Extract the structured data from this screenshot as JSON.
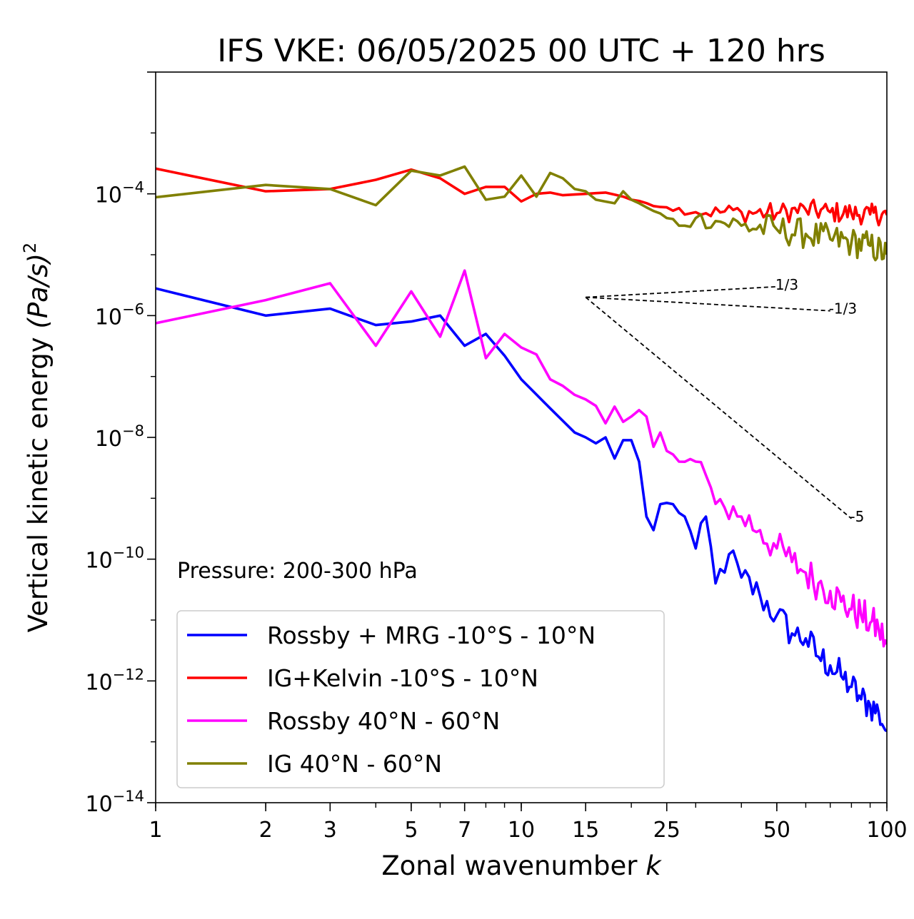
{
  "chart_data": {
    "type": "line",
    "title": "IFS VKE: 06/05/2025 00 UTC + 120 hrs",
    "xlabel_text": "Zonal wavenumber ",
    "xlabel_var": "k",
    "ylabel_text": "Vertical kinetic energy ",
    "ylabel_var": "(Pa/s)",
    "ylabel_exp": "2",
    "x_scale": "log",
    "y_scale": "log",
    "xlim": [
      1,
      100
    ],
    "ylim": [
      1e-14,
      0.01
    ],
    "x_ticks": [
      1,
      2,
      3,
      5,
      7,
      10,
      15,
      25,
      50,
      100
    ],
    "x_tick_labels": [
      "1",
      "2",
      "3",
      "5",
      "7",
      "10",
      "15",
      "25",
      "50",
      "100"
    ],
    "y_ticks": [
      1e-14,
      1e-12,
      1e-10,
      1e-08,
      1e-06,
      0.0001
    ],
    "y_tick_base": "10",
    "y_tick_exponents": [
      "−14",
      "−12",
      "−10",
      "−8",
      "−6",
      "−4"
    ],
    "grid": false,
    "legend_position": "bottom-left",
    "annotation": "Pressure: 200-300 hPa",
    "series": [
      {
        "name": "Rossby + MRG -10°S - 10°N",
        "color": "#0000ff",
        "anchors": [
          [
            1,
            2.8e-06
          ],
          [
            2,
            1e-06
          ],
          [
            3,
            1.3e-06
          ],
          [
            4,
            7e-07
          ],
          [
            5,
            8e-07
          ],
          [
            6,
            1e-06
          ],
          [
            7,
            3.2e-07
          ],
          [
            8,
            5e-07
          ],
          [
            9,
            2.2e-07
          ],
          [
            10,
            9e-08
          ],
          [
            12,
            3e-08
          ],
          [
            14,
            1.2e-08
          ],
          [
            15,
            1e-08
          ],
          [
            16,
            8e-09
          ],
          [
            17,
            1e-08
          ],
          [
            18,
            4.5e-09
          ],
          [
            19,
            9e-09
          ],
          [
            20,
            9e-09
          ],
          [
            21,
            4e-09
          ],
          [
            22,
            5e-10
          ],
          [
            23,
            3e-10
          ],
          [
            24,
            8e-10
          ],
          [
            26,
            8e-10
          ],
          [
            28,
            5e-10
          ],
          [
            30,
            1.5e-10
          ],
          [
            32,
            5e-10
          ],
          [
            34,
            4e-11
          ],
          [
            37,
            1.2e-10
          ],
          [
            40,
            5e-11
          ],
          [
            45,
            2.5e-11
          ],
          [
            50,
            1.2e-11
          ],
          [
            55,
            6e-12
          ],
          [
            60,
            5e-12
          ],
          [
            65,
            2.5e-12
          ],
          [
            70,
            1.8e-12
          ],
          [
            75,
            1.2e-12
          ],
          [
            80,
            8e-13
          ],
          [
            85,
            5e-13
          ],
          [
            90,
            4e-13
          ],
          [
            95,
            3e-13
          ],
          [
            100,
            1.5e-13
          ]
        ],
        "noise": 0.55
      },
      {
        "name": "IG+Kelvin -10°S - 10°N",
        "color": "#ff0000",
        "anchors": [
          [
            1,
            0.00026
          ],
          [
            2,
            0.00011
          ],
          [
            3,
            0.00012
          ],
          [
            4,
            0.00017
          ],
          [
            5,
            0.00025
          ],
          [
            6,
            0.00018
          ],
          [
            7,
            0.0001
          ],
          [
            8,
            0.00013
          ],
          [
            9,
            0.00013
          ],
          [
            10,
            7.5e-05
          ],
          [
            11,
            0.0001
          ],
          [
            12,
            0.000105
          ],
          [
            13,
            9.5e-05
          ],
          [
            15,
            0.0001
          ],
          [
            17,
            0.000105
          ],
          [
            19,
            9e-05
          ],
          [
            20,
            8e-05
          ],
          [
            25,
            6e-05
          ],
          [
            30,
            5e-05
          ],
          [
            40,
            5e-05
          ],
          [
            50,
            4.8e-05
          ],
          [
            60,
            5.5e-05
          ],
          [
            70,
            5e-05
          ],
          [
            80,
            4.8e-05
          ],
          [
            90,
            4.6e-05
          ],
          [
            100,
            4.5e-05
          ]
        ],
        "noise": 0.35
      },
      {
        "name": "Rossby 40°N - 60°N",
        "color": "#ff00ff",
        "anchors": [
          [
            1,
            7.5e-07
          ],
          [
            2,
            1.8e-06
          ],
          [
            3,
            3.4e-06
          ],
          [
            4,
            3.2e-07
          ],
          [
            5,
            2.5e-06
          ],
          [
            6,
            4.5e-07
          ],
          [
            7,
            5.5e-06
          ],
          [
            8,
            2e-07
          ],
          [
            9,
            5e-07
          ],
          [
            10,
            3e-07
          ],
          [
            11,
            2.3e-07
          ],
          [
            12,
            9e-08
          ],
          [
            13,
            7e-08
          ],
          [
            14,
            5e-08
          ],
          [
            15,
            4.2e-08
          ],
          [
            16,
            3.3e-08
          ],
          [
            17,
            1.7e-08
          ],
          [
            18,
            3.2e-08
          ],
          [
            19,
            1.8e-08
          ],
          [
            20,
            2.2e-08
          ],
          [
            21,
            2.8e-08
          ],
          [
            22,
            2.2e-08
          ],
          [
            23,
            7e-09
          ],
          [
            24,
            1.2e-08
          ],
          [
            25,
            6e-09
          ],
          [
            27,
            4e-09
          ],
          [
            30,
            4e-09
          ],
          [
            33,
            1.5e-09
          ],
          [
            36,
            7e-10
          ],
          [
            40,
            5e-10
          ],
          [
            45,
            3e-10
          ],
          [
            50,
            1.5e-10
          ],
          [
            55,
            9e-11
          ],
          [
            60,
            6e-11
          ],
          [
            65,
            4e-11
          ],
          [
            70,
            3e-11
          ],
          [
            75,
            2e-11
          ],
          [
            80,
            1.5e-11
          ],
          [
            85,
            1.2e-11
          ],
          [
            90,
            9e-12
          ],
          [
            95,
            7e-12
          ],
          [
            100,
            4e-12
          ]
        ],
        "noise": 0.6
      },
      {
        "name": "IG 40°N - 60°N",
        "color": "#808000",
        "anchors": [
          [
            1,
            8.8e-05
          ],
          [
            2,
            0.00014
          ],
          [
            3,
            0.00012
          ],
          [
            4,
            6.5e-05
          ],
          [
            5,
            0.00024
          ],
          [
            6,
            0.0002
          ],
          [
            7,
            0.00028
          ],
          [
            8,
            8e-05
          ],
          [
            9,
            9e-05
          ],
          [
            10,
            0.0002
          ],
          [
            11,
            9e-05
          ],
          [
            12,
            0.00022
          ],
          [
            13,
            0.00018
          ],
          [
            14,
            0.00012
          ],
          [
            15,
            0.00011
          ],
          [
            16,
            8e-05
          ],
          [
            18,
            7e-05
          ],
          [
            19,
            0.00011
          ],
          [
            20,
            8e-05
          ],
          [
            22,
            6e-05
          ],
          [
            25,
            4e-05
          ],
          [
            28,
            3e-05
          ],
          [
            30,
            4e-05
          ],
          [
            35,
            3.5e-05
          ],
          [
            40,
            3e-05
          ],
          [
            50,
            2.6e-05
          ],
          [
            60,
            2.2e-05
          ],
          [
            70,
            1.8e-05
          ],
          [
            80,
            1.6e-05
          ],
          [
            90,
            1.4e-05
          ],
          [
            100,
            1e-05
          ]
        ],
        "noise": 0.5
      }
    ],
    "reference_slopes": [
      {
        "label": "1/3",
        "slope": 0.3333,
        "k_start": 15,
        "e_start": 2e-06,
        "k_end": 50
      },
      {
        "label": "-1/3",
        "slope": -0.3333,
        "k_start": 15,
        "e_start": 2e-06,
        "k_end": 70
      },
      {
        "label": "-5",
        "slope": -5,
        "k_start": 15,
        "e_start": 2e-06,
        "k_end": 80
      }
    ]
  }
}
